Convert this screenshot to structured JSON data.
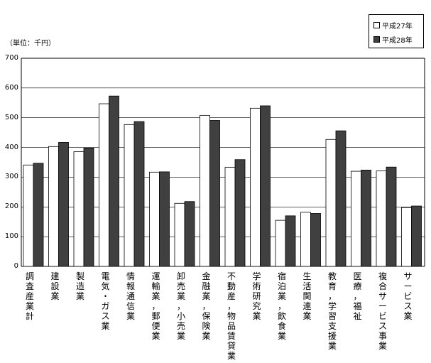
{
  "unit_label": "（単位：千円）",
  "legend": {
    "series0": "平成27年",
    "series1": "平成28年"
  },
  "colors": {
    "series0": "#ffffff",
    "series1": "#404040",
    "stroke": "#000000",
    "grid": "#000000"
  },
  "chart_data": {
    "type": "bar",
    "title": "",
    "xlabel": "",
    "ylabel": "",
    "ylim": [
      0,
      700
    ],
    "yticks": [
      0,
      100,
      200,
      300,
      400,
      500,
      600,
      700
    ],
    "ytick_labels": [
      "0",
      "100",
      "200",
      "300",
      "400",
      "500",
      "600",
      "700"
    ],
    "grid": true,
    "legend_position": "top-right",
    "categories": [
      "調査産業計",
      "建設業",
      "製造業",
      "電気・ガス業",
      "情報通信業",
      "運輸業，郵便業",
      "卸売業，小売業",
      "金融業，保険業",
      "不動産，物品賃貸業",
      "学術研究業",
      "宿泊業，飲食業",
      "生活関連業",
      "教育，学習支援業",
      "医療，福祉",
      "複合サービス事業",
      "サービス業"
    ],
    "series": [
      {
        "name": "平成27年",
        "values": [
          341,
          403,
          386,
          547,
          477,
          317,
          212,
          508,
          333,
          532,
          155,
          182,
          427,
          320,
          321,
          198
        ]
      },
      {
        "name": "平成28年",
        "values": [
          347,
          417,
          398,
          573,
          487,
          318,
          218,
          491,
          359,
          540,
          170,
          178,
          456,
          324,
          334,
          203
        ]
      }
    ]
  }
}
